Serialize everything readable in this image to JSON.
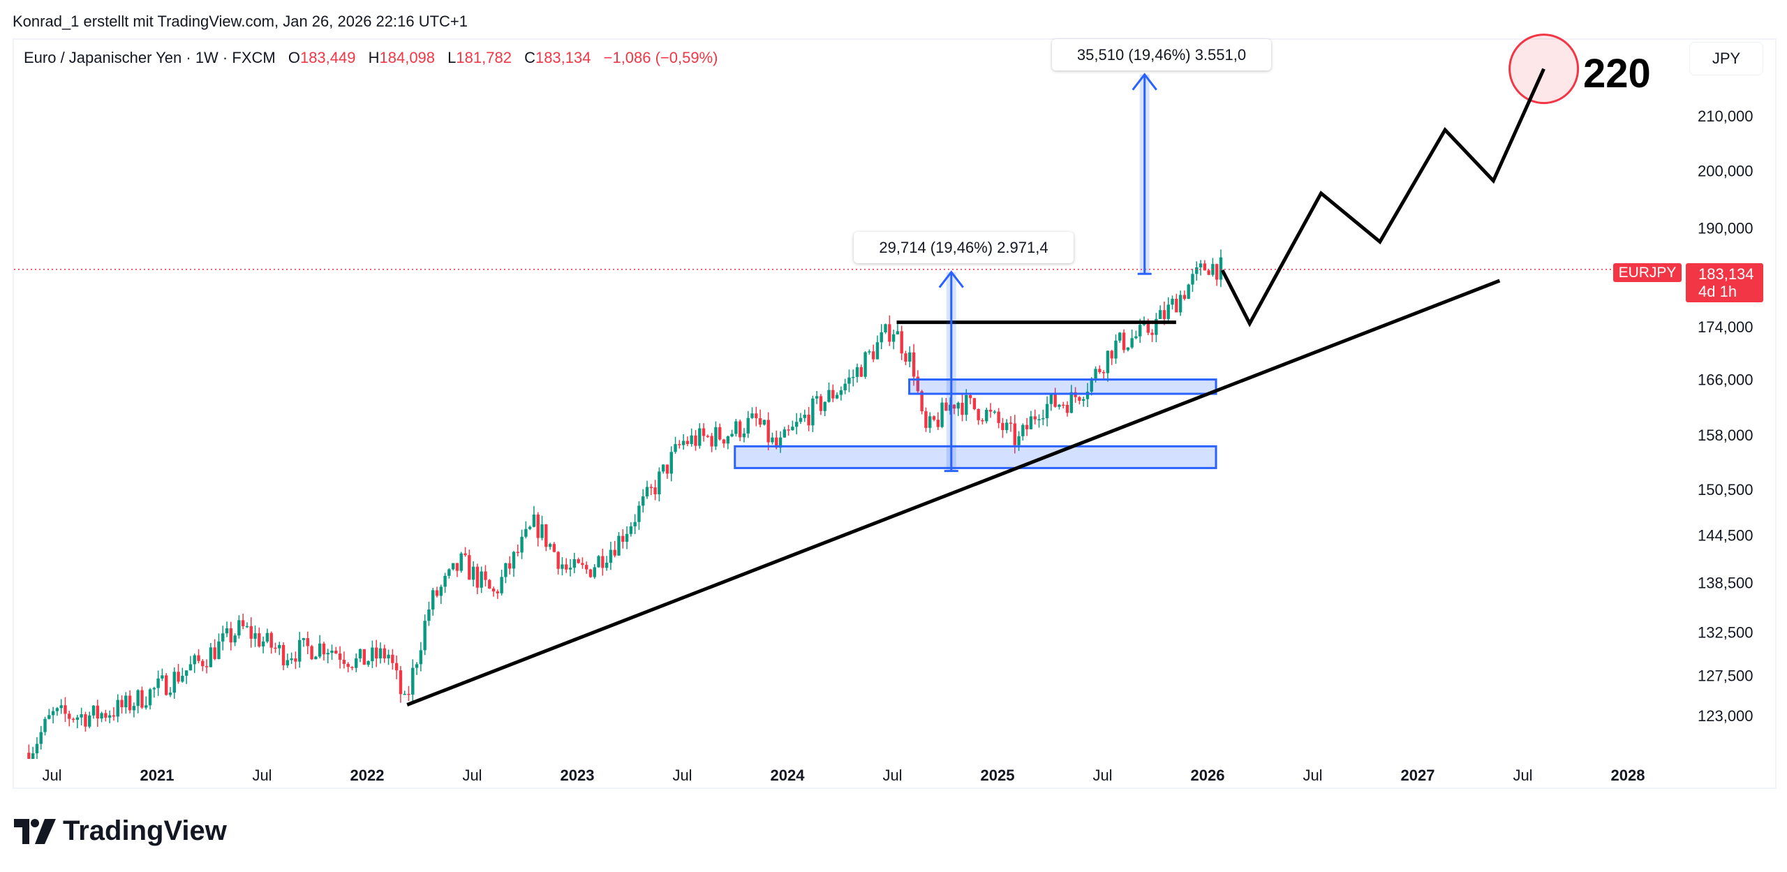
{
  "credit": "Konrad_1 erstellt mit TradingView.com, Jan 26, 2026 22:16 UTC+1",
  "legend": {
    "symbol_desc": "Euro / Japanischer Yen · 1W · FXCM",
    "o_label": "O",
    "o": "183,449",
    "h_label": "H",
    "h": "184,098",
    "l_label": "L",
    "l": "181,782",
    "c_label": "C",
    "c": "183,134",
    "change": "−1,086 (−0,59%)"
  },
  "currency_button": "JPY",
  "symbol_tag": "EURJPY",
  "last_price": "183,134",
  "countdown": "4d 1h",
  "annotations": {
    "measure_1": "29,714 (19,46%) 2.971,4",
    "measure_2": "35,510 (19,46%) 3.551,0",
    "target": "220"
  },
  "logo_text": "TradingView",
  "colors": {
    "up": "#089981",
    "down": "#f23645",
    "drawing": "#2962ff",
    "accent": "#f23645"
  },
  "chart_data": {
    "type": "candlestick",
    "title": "Euro / Japanischer Yen · 1W · FXCM",
    "yscale": "log",
    "ylim": [
      116,
      222
    ],
    "yticks": [
      {
        "v": 210,
        "label": "210,000"
      },
      {
        "v": 200,
        "label": "200,000"
      },
      {
        "v": 190,
        "label": "190,000"
      },
      {
        "v": 174,
        "label": "174,000"
      },
      {
        "v": 166,
        "label": "166,000"
      },
      {
        "v": 158,
        "label": "158,000"
      },
      {
        "v": 150.5,
        "label": "150,500"
      },
      {
        "v": 144.5,
        "label": "144,500"
      },
      {
        "v": 138.5,
        "label": "138,500"
      },
      {
        "v": 132.5,
        "label": "132,500"
      },
      {
        "v": 127.5,
        "label": "127,500"
      },
      {
        "v": 123,
        "label": "123,000"
      }
    ],
    "xticks": [
      {
        "t": 2020.5,
        "label": "Jul",
        "major": false
      },
      {
        "t": 2021,
        "label": "2021",
        "major": true
      },
      {
        "t": 2021.5,
        "label": "Jul",
        "major": false
      },
      {
        "t": 2022,
        "label": "2022",
        "major": true
      },
      {
        "t": 2022.5,
        "label": "Jul",
        "major": false
      },
      {
        "t": 2023,
        "label": "2023",
        "major": true
      },
      {
        "t": 2023.5,
        "label": "Jul",
        "major": false
      },
      {
        "t": 2024,
        "label": "2024",
        "major": true
      },
      {
        "t": 2024.5,
        "label": "Jul",
        "major": false
      },
      {
        "t": 2025,
        "label": "2025",
        "major": true
      },
      {
        "t": 2025.5,
        "label": "Jul",
        "major": false
      },
      {
        "t": 2026,
        "label": "2026",
        "major": true
      },
      {
        "t": 2026.5,
        "label": "Jul",
        "major": false
      },
      {
        "t": 2027,
        "label": "2027",
        "major": true
      },
      {
        "t": 2027.5,
        "label": "Jul",
        "major": false
      },
      {
        "t": 2028,
        "label": "2028",
        "major": true
      }
    ],
    "last_close": 183.134,
    "close_anchors": [
      [
        2020.39,
        119
      ],
      [
        2020.5,
        123
      ],
      [
        2020.7,
        123
      ],
      [
        2020.85,
        124
      ],
      [
        2021.0,
        126
      ],
      [
        2021.2,
        129
      ],
      [
        2021.4,
        133
      ],
      [
        2021.6,
        130
      ],
      [
        2021.8,
        131
      ],
      [
        2021.95,
        129
      ],
      [
        2022.1,
        130
      ],
      [
        2022.18,
        124
      ],
      [
        2022.3,
        136
      ],
      [
        2022.45,
        141
      ],
      [
        2022.6,
        137
      ],
      [
        2022.8,
        146
      ],
      [
        2022.95,
        140
      ],
      [
        2023.05,
        140
      ],
      [
        2023.2,
        144
      ],
      [
        2023.35,
        150
      ],
      [
        2023.5,
        157
      ],
      [
        2023.7,
        158
      ],
      [
        2023.85,
        160
      ],
      [
        2023.95,
        156
      ],
      [
        2024.1,
        161
      ],
      [
        2024.3,
        166
      ],
      [
        2024.5,
        174
      ],
      [
        2024.6,
        168
      ],
      [
        2024.65,
        158
      ],
      [
        2024.8,
        163
      ],
      [
        2024.95,
        161
      ],
      [
        2025.1,
        157
      ],
      [
        2025.2,
        162
      ],
      [
        2025.35,
        163
      ],
      [
        2025.45,
        166
      ],
      [
        2025.55,
        171
      ],
      [
        2025.7,
        173
      ],
      [
        2025.8,
        176
      ],
      [
        2025.92,
        181
      ],
      [
        2026.0,
        184
      ],
      [
        2026.07,
        183.134
      ]
    ],
    "drawings": {
      "trendline": [
        [
          2022.19,
          124.2
        ],
        [
          2027.39,
          181.3
        ]
      ],
      "resistance": {
        "t": [
          2024.52,
          2025.85
        ],
        "v": 174.7
      },
      "zone_upper": {
        "t": [
          2024.58,
          2026.04
        ],
        "v": [
          163.9,
          166.0
        ]
      },
      "zone_lower": {
        "t": [
          2023.75,
          2026.04
        ],
        "v": [
          153.4,
          156.4
        ]
      },
      "measure_1": {
        "t": 2024.78,
        "from": 153.0,
        "to": 182.7
      },
      "measure_2": {
        "t": 2025.7,
        "from": 182.4,
        "to": 217.9
      },
      "projection": [
        [
          2026.07,
          183.0
        ],
        [
          2026.2,
          174.5
        ],
        [
          2026.54,
          196.0
        ],
        [
          2026.82,
          187.7
        ],
        [
          2027.13,
          207.4
        ],
        [
          2027.36,
          198.2
        ],
        [
          2027.6,
          219.0
        ]
      ],
      "target_circle": [
        2027.6,
        219.0
      ]
    }
  }
}
